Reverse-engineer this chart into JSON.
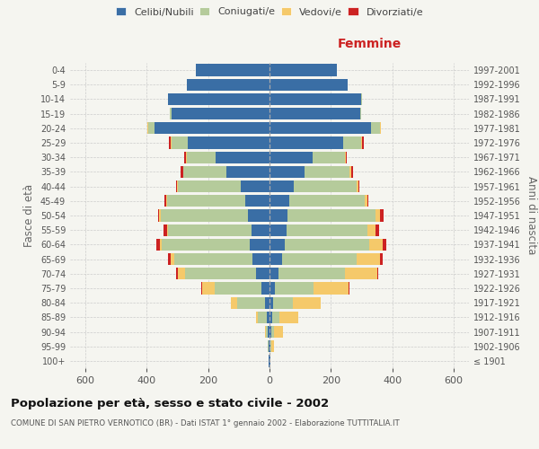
{
  "age_groups": [
    "100+",
    "95-99",
    "90-94",
    "85-89",
    "80-84",
    "75-79",
    "70-74",
    "65-69",
    "60-64",
    "55-59",
    "50-54",
    "45-49",
    "40-44",
    "35-39",
    "30-34",
    "25-29",
    "20-24",
    "15-19",
    "10-14",
    "5-9",
    "0-4"
  ],
  "birth_years": [
    "≤ 1901",
    "1902-1906",
    "1907-1911",
    "1912-1916",
    "1917-1921",
    "1922-1926",
    "1927-1931",
    "1932-1936",
    "1937-1941",
    "1942-1946",
    "1947-1951",
    "1952-1956",
    "1957-1961",
    "1962-1966",
    "1967-1971",
    "1972-1976",
    "1977-1981",
    "1982-1986",
    "1987-1991",
    "1992-1996",
    "1997-2001"
  ],
  "males": {
    "celibi": [
      2,
      3,
      5,
      8,
      15,
      25,
      45,
      55,
      65,
      60,
      70,
      80,
      95,
      140,
      175,
      265,
      375,
      320,
      330,
      270,
      240
    ],
    "coniugati": [
      0,
      2,
      8,
      30,
      90,
      155,
      230,
      255,
      285,
      270,
      285,
      255,
      205,
      140,
      95,
      55,
      20,
      5,
      2,
      0,
      0
    ],
    "vedovi": [
      0,
      0,
      2,
      5,
      20,
      40,
      25,
      12,
      8,
      5,
      4,
      3,
      2,
      2,
      2,
      2,
      2,
      0,
      0,
      0,
      0
    ],
    "divorziati": [
      0,
      0,
      0,
      0,
      1,
      2,
      5,
      8,
      12,
      10,
      5,
      5,
      3,
      8,
      5,
      5,
      2,
      0,
      0,
      0,
      0
    ]
  },
  "females": {
    "nubili": [
      2,
      3,
      5,
      8,
      12,
      18,
      30,
      40,
      50,
      55,
      60,
      65,
      80,
      115,
      140,
      240,
      330,
      295,
      300,
      255,
      220
    ],
    "coniugate": [
      0,
      3,
      10,
      25,
      65,
      125,
      215,
      245,
      275,
      265,
      285,
      245,
      205,
      145,
      105,
      60,
      30,
      5,
      2,
      0,
      0
    ],
    "vedove": [
      2,
      8,
      30,
      60,
      90,
      115,
      105,
      75,
      45,
      25,
      15,
      8,
      5,
      5,
      3,
      3,
      2,
      0,
      0,
      0,
      0
    ],
    "divorziate": [
      0,
      0,
      0,
      0,
      1,
      2,
      5,
      8,
      12,
      12,
      12,
      5,
      3,
      8,
      5,
      3,
      2,
      0,
      0,
      0,
      0
    ]
  },
  "colors": {
    "celibi": "#3a6ea5",
    "coniugati": "#b5cb9b",
    "vedovi": "#f5c96a",
    "divorziati": "#cc2222"
  },
  "xlim": 650,
  "title": "Popolazione per età, sesso e stato civile - 2002",
  "subtitle": "COMUNE DI SAN PIETRO VERNOTICO (BR) - Dati ISTAT 1° gennaio 2002 - Elaborazione TUTTITALIA.IT",
  "ylabel_left": "Fasce di età",
  "ylabel_right": "Anni di nascita",
  "xlabel_right": "Femmine",
  "bg_color": "#f5f5f0",
  "grid_color": "#cccccc"
}
